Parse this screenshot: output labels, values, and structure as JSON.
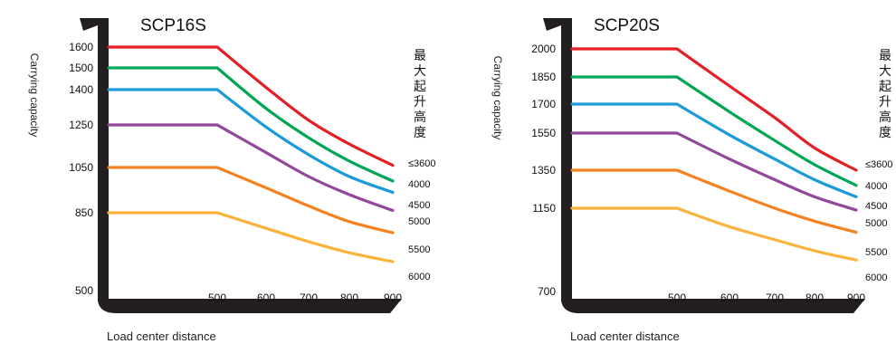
{
  "chart_data": [
    {
      "type": "line",
      "title": "SCP16S",
      "ylabel": "Carrying capacity",
      "xlabel": "Load center distance",
      "legend_title": "最大起升高度",
      "x_ticks": [
        500,
        600,
        700,
        800,
        900
      ],
      "y_ticks": [
        500,
        850,
        1050,
        1250,
        1400,
        1500,
        1600
      ],
      "xlim": [
        400,
        900
      ],
      "series": [
        {
          "name": "≤3600",
          "color": "#e31e24",
          "x": [
            400,
            500,
            600,
            700,
            800,
            900
          ],
          "y": [
            1600,
            1600,
            1410,
            1270,
            1160,
            1060
          ]
        },
        {
          "name": "4000",
          "color": "#00a651",
          "x": [
            400,
            500,
            600,
            700,
            800,
            900
          ],
          "y": [
            1500,
            1500,
            1320,
            1190,
            1080,
            990
          ]
        },
        {
          "name": "4500",
          "color": "#1a9ad7",
          "x": [
            400,
            500,
            600,
            700,
            800,
            900
          ],
          "y": [
            1400,
            1400,
            1240,
            1110,
            1010,
            940
          ]
        },
        {
          "name": "5000",
          "color": "#93479b",
          "x": [
            400,
            500,
            600,
            700,
            800,
            900
          ],
          "y": [
            1250,
            1250,
            1120,
            1010,
            930,
            860
          ]
        },
        {
          "name": "5500",
          "color": "#f58220",
          "x": [
            400,
            500,
            600,
            700,
            800,
            900
          ],
          "y": [
            1050,
            1050,
            960,
            880,
            810,
            760
          ]
        },
        {
          "name": "6000",
          "color": "#f9b33a",
          "x": [
            400,
            500,
            600,
            700,
            800,
            900
          ],
          "y": [
            850,
            850,
            780,
            720,
            670,
            630
          ]
        }
      ]
    },
    {
      "type": "line",
      "title": "SCP20S",
      "ylabel": "Carrying capacity",
      "xlabel": "Load center distance",
      "legend_title": "最大起升高度",
      "x_ticks": [
        500,
        600,
        700,
        800,
        900
      ],
      "y_ticks": [
        700,
        1150,
        1350,
        1550,
        1700,
        1850,
        2000
      ],
      "xlim": [
        400,
        900
      ],
      "series": [
        {
          "name": "≤3600",
          "color": "#e31e24",
          "x": [
            400,
            500,
            600,
            700,
            800,
            900
          ],
          "y": [
            2000,
            2000,
            1800,
            1630,
            1470,
            1350
          ]
        },
        {
          "name": "4000",
          "color": "#00a651",
          "x": [
            400,
            500,
            600,
            700,
            800,
            900
          ],
          "y": [
            1850,
            1850,
            1660,
            1510,
            1380,
            1270
          ]
        },
        {
          "name": "4500",
          "color": "#1a9ad7",
          "x": [
            400,
            500,
            600,
            700,
            800,
            900
          ],
          "y": [
            1700,
            1700,
            1540,
            1410,
            1300,
            1210
          ]
        },
        {
          "name": "5000",
          "color": "#93479b",
          "x": [
            400,
            500,
            600,
            700,
            800,
            900
          ],
          "y": [
            1550,
            1550,
            1410,
            1300,
            1210,
            1140
          ]
        },
        {
          "name": "5500",
          "color": "#f58220",
          "x": [
            400,
            500,
            600,
            700,
            800,
            900
          ],
          "y": [
            1350,
            1350,
            1240,
            1150,
            1080,
            1020
          ]
        },
        {
          "name": "6000",
          "color": "#f9b33a",
          "x": [
            400,
            500,
            600,
            700,
            800,
            900
          ],
          "y": [
            1150,
            1150,
            1050,
            980,
            920,
            870
          ]
        }
      ]
    }
  ]
}
